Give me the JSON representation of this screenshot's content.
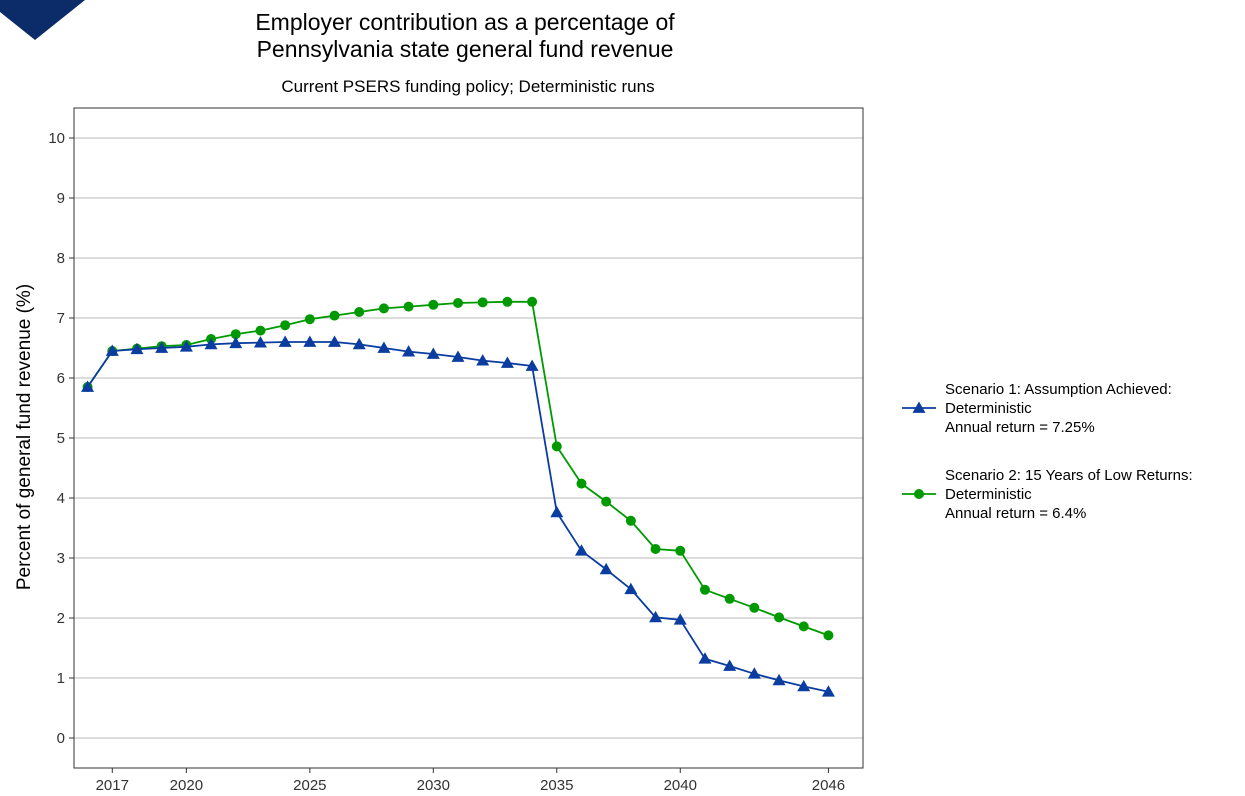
{
  "chart_data": {
    "type": "line",
    "title_lines": [
      "Employer contribution as a percentage of",
      "Pennsylvania state general fund revenue"
    ],
    "subtitle": "Current PSERS funding policy; Deterministic runs",
    "xlabel": "",
    "ylabel": "Percent of general fund revenue (%)",
    "x": [
      2016,
      2017,
      2018,
      2019,
      2020,
      2021,
      2022,
      2023,
      2024,
      2025,
      2026,
      2027,
      2028,
      2029,
      2030,
      2031,
      2032,
      2033,
      2034,
      2035,
      2036,
      2037,
      2038,
      2039,
      2040,
      2041,
      2042,
      2043,
      2044,
      2045,
      2046
    ],
    "x_ticks": [
      2017,
      2020,
      2025,
      2030,
      2035,
      2040,
      2046
    ],
    "y_ticks": [
      0,
      1,
      2,
      3,
      4,
      5,
      6,
      7,
      8,
      9,
      10
    ],
    "xlim": [
      2015.45,
      2047.4
    ],
    "ylim": [
      -0.5,
      10.5
    ],
    "grid": "horizontal",
    "legend_position": "right",
    "series": [
      {
        "name_lines": [
          "Scenario 1: Assumption Achieved:",
          "Deterministic",
          "Annual return = 7.25%"
        ],
        "color": "#0a3d9f",
        "marker": "triangle",
        "values": [
          5.85,
          6.45,
          6.48,
          6.5,
          6.52,
          6.56,
          6.58,
          6.59,
          6.6,
          6.6,
          6.6,
          6.56,
          6.5,
          6.44,
          6.4,
          6.35,
          6.29,
          6.25,
          6.2,
          3.76,
          3.12,
          2.81,
          2.48,
          2.01,
          1.97,
          1.32,
          1.2,
          1.07,
          0.96,
          0.86,
          0.77
        ]
      },
      {
        "name_lines": [
          "Scenario 2: 15 Years of Low Returns:",
          "Deterministic",
          "Annual return = 6.4%"
        ],
        "color": "#009a00",
        "marker": "circle",
        "values": [
          5.85,
          6.45,
          6.49,
          6.53,
          6.55,
          6.65,
          6.73,
          6.79,
          6.88,
          6.98,
          7.04,
          7.1,
          7.16,
          7.19,
          7.22,
          7.25,
          7.26,
          7.27,
          7.27,
          4.86,
          4.24,
          3.94,
          3.62,
          3.15,
          3.12,
          2.47,
          2.32,
          2.17,
          2.01,
          1.86,
          1.71
        ]
      }
    ]
  },
  "colors": {
    "corner_accent": "#0b2c69",
    "grid": "#c8c8c8",
    "axis": "#333333"
  }
}
